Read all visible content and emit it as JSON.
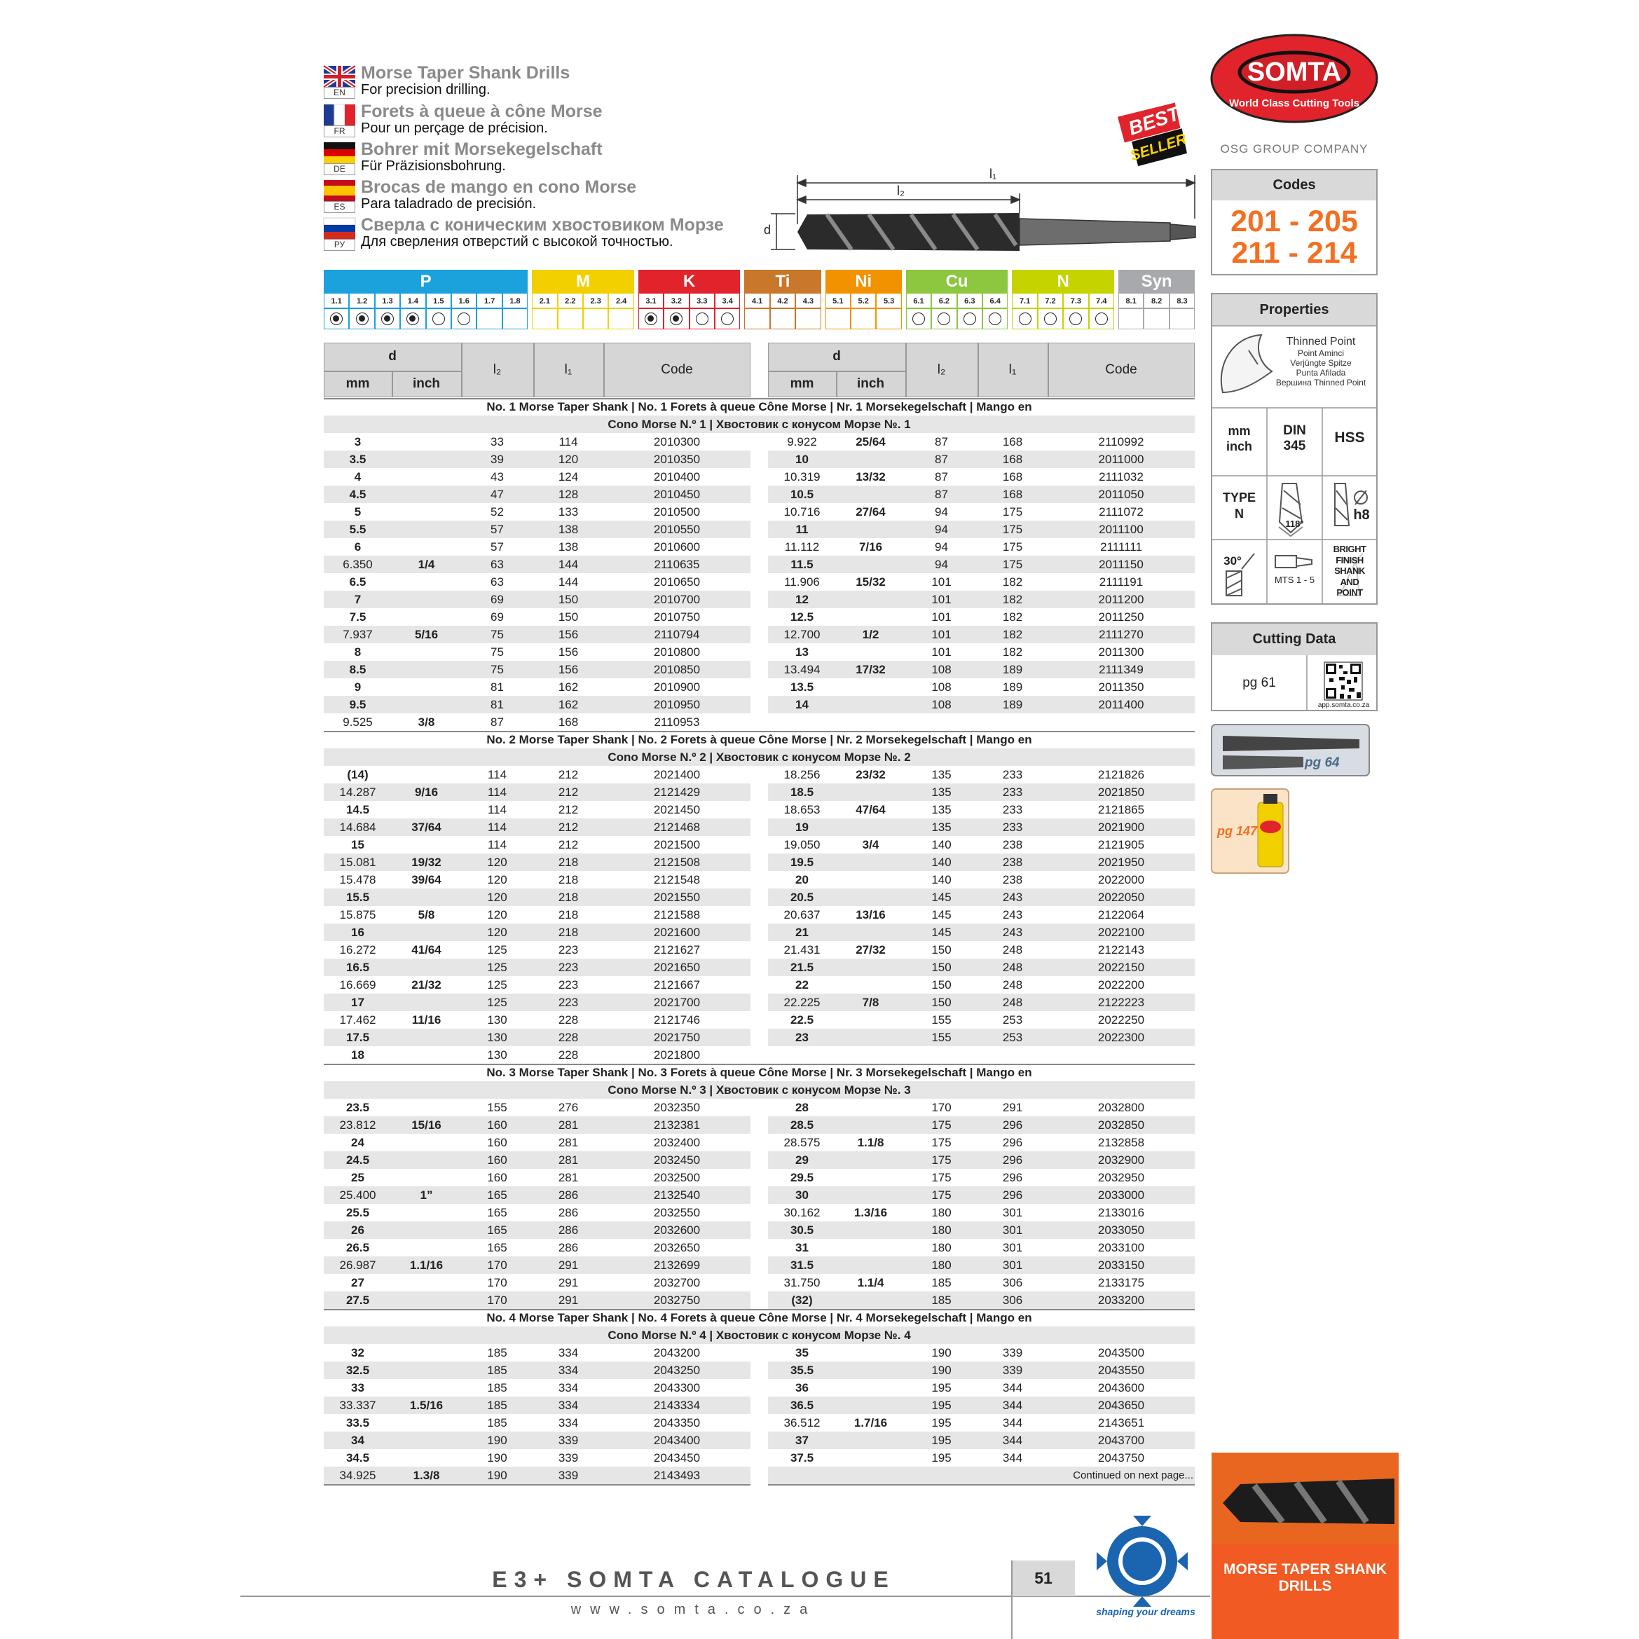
{
  "languages": [
    {
      "code": "EN",
      "title": "Morse Taper Shank Drills",
      "subtitle": "For precision drilling."
    },
    {
      "code": "FR",
      "title": "Forets à queue à cône Morse",
      "subtitle": "Pour un perçage de précision."
    },
    {
      "code": "DE",
      "title": "Bohrer mit Morsekegelschaft",
      "subtitle": "Für Präzisionsbohrung."
    },
    {
      "code": "ES",
      "title": "Brocas de mango en cono Morse",
      "subtitle": "Para taladrado de precisión."
    },
    {
      "code": "РУ",
      "title": "Сверла с коническим хвостовиком Морзе",
      "subtitle": "Для сверления отверстий с высокой точностью."
    }
  ],
  "badge": [
    "BEST",
    "SELLER"
  ],
  "drawing": {
    "l1": "l₁",
    "l2": "l₂",
    "d": "d"
  },
  "materials": [
    {
      "group": "P",
      "color": "#1ba1dc",
      "subgroups": [
        "1.1",
        "1.2",
        "1.3",
        "1.4",
        "1.5",
        "1.6",
        "1.7",
        "1.8"
      ],
      "suitability": [
        1,
        1,
        1,
        1,
        0,
        0,
        null,
        null
      ]
    },
    {
      "group": "M",
      "color": "#f2d000",
      "subgroups": [
        "2.1",
        "2.2",
        "2.3",
        "2.4"
      ],
      "suitability": [
        null,
        null,
        null,
        null
      ]
    },
    {
      "group": "K",
      "color": "#e1232b",
      "subgroups": [
        "3.1",
        "3.2",
        "3.3",
        "3.4"
      ],
      "suitability": [
        1,
        1,
        0,
        0
      ]
    },
    {
      "group": "Ti",
      "color": "#c9772b",
      "subgroups": [
        "4.1",
        "4.2",
        "4.3"
      ],
      "suitability": [
        null,
        null,
        null
      ]
    },
    {
      "group": "Ni",
      "color": "#f39200",
      "subgroups": [
        "5.1",
        "5.2",
        "5.3"
      ],
      "suitability": [
        null,
        null,
        null
      ]
    },
    {
      "group": "Cu",
      "color": "#8dc63f",
      "subgroups": [
        "6.1",
        "6.2",
        "6.3",
        "6.4"
      ],
      "suitability": [
        0,
        0,
        0,
        0
      ]
    },
    {
      "group": "N",
      "color": "#c5d300",
      "subgroups": [
        "7.1",
        "7.2",
        "7.3",
        "7.4"
      ],
      "suitability": [
        0,
        0,
        0,
        0
      ]
    },
    {
      "group": "Syn",
      "color": "#a7a9ac",
      "subgroups": [
        "8.1",
        "8.2",
        "8.3"
      ],
      "suitability": [
        null,
        null,
        null
      ]
    }
  ],
  "table": {
    "header": {
      "d": "d",
      "mm": "mm",
      "inch": "inch",
      "l2": "l₂",
      "l1": "l₁",
      "code": "Code"
    },
    "sections": [
      {
        "title": [
          "No. 1 Morse Taper Shank | No. 1 Forets à queue Cône Morse | Nr. 1 Morsekegelschaft | Mango en",
          "Cono Morse N.º 1 | Хвостовик с конусом Морзе №. 1"
        ],
        "left": [
          [
            "3",
            null,
            "33",
            "114",
            "2010300"
          ],
          [
            "3.5",
            null,
            "39",
            "120",
            "2010350"
          ],
          [
            "4",
            null,
            "43",
            "124",
            "2010400"
          ],
          [
            "4.5",
            null,
            "47",
            "128",
            "2010450"
          ],
          [
            "5",
            null,
            "52",
            "133",
            "2010500"
          ],
          [
            "5.5",
            null,
            "57",
            "138",
            "2010550"
          ],
          [
            "6",
            null,
            "57",
            "138",
            "2010600"
          ],
          [
            "6.350",
            "1/4",
            "63",
            "144",
            "2110635"
          ],
          [
            "6.5",
            null,
            "63",
            "144",
            "2010650"
          ],
          [
            "7",
            null,
            "69",
            "150",
            "2010700"
          ],
          [
            "7.5",
            null,
            "69",
            "150",
            "2010750"
          ],
          [
            "7.937",
            "5/16",
            "75",
            "156",
            "2110794"
          ],
          [
            "8",
            null,
            "75",
            "156",
            "2010800"
          ],
          [
            "8.5",
            null,
            "75",
            "156",
            "2010850"
          ],
          [
            "9",
            null,
            "81",
            "162",
            "2010900"
          ],
          [
            "9.5",
            null,
            "81",
            "162",
            "2010950"
          ],
          [
            "9.525",
            "3/8",
            "87",
            "168",
            "2110953"
          ]
        ],
        "right": [
          [
            "9.922",
            "25/64",
            "87",
            "168",
            "2110992"
          ],
          [
            "10",
            null,
            "87",
            "168",
            "2011000"
          ],
          [
            "10.319",
            "13/32",
            "87",
            "168",
            "2111032"
          ],
          [
            "10.5",
            null,
            "87",
            "168",
            "2011050"
          ],
          [
            "10.716",
            "27/64",
            "94",
            "175",
            "2111072"
          ],
          [
            "11",
            null,
            "94",
            "175",
            "2011100"
          ],
          [
            "11.112",
            "7/16",
            "94",
            "175",
            "2111111"
          ],
          [
            "11.5",
            null,
            "94",
            "175",
            "2011150"
          ],
          [
            "11.906",
            "15/32",
            "101",
            "182",
            "2111191"
          ],
          [
            "12",
            null,
            "101",
            "182",
            "2011200"
          ],
          [
            "12.5",
            null,
            "101",
            "182",
            "2011250"
          ],
          [
            "12.700",
            "1/2",
            "101",
            "182",
            "2111270"
          ],
          [
            "13",
            null,
            "101",
            "182",
            "2011300"
          ],
          [
            "13.494",
            "17/32",
            "108",
            "189",
            "2111349"
          ],
          [
            "13.5",
            null,
            "108",
            "189",
            "2011350"
          ],
          [
            "14",
            null,
            "108",
            "189",
            "2011400"
          ]
        ]
      },
      {
        "title": [
          "No. 2 Morse Taper Shank | No. 2 Forets à queue Cône Morse | Nr. 2 Morsekegelschaft | Mango en",
          "Cono Morse N.º 2 | Хвостовик с конусом Морзе №. 2"
        ],
        "left": [
          [
            "(14)",
            null,
            "114",
            "212",
            "2021400"
          ],
          [
            "14.287",
            "9/16",
            "114",
            "212",
            "2121429"
          ],
          [
            "14.5",
            null,
            "114",
            "212",
            "2021450"
          ],
          [
            "14.684",
            "37/64",
            "114",
            "212",
            "2121468"
          ],
          [
            "15",
            null,
            "114",
            "212",
            "2021500"
          ],
          [
            "15.081",
            "19/32",
            "120",
            "218",
            "2121508"
          ],
          [
            "15.478",
            "39/64",
            "120",
            "218",
            "2121548"
          ],
          [
            "15.5",
            null,
            "120",
            "218",
            "2021550"
          ],
          [
            "15.875",
            "5/8",
            "120",
            "218",
            "2121588"
          ],
          [
            "16",
            null,
            "120",
            "218",
            "2021600"
          ],
          [
            "16.272",
            "41/64",
            "125",
            "223",
            "2121627"
          ],
          [
            "16.5",
            null,
            "125",
            "223",
            "2021650"
          ],
          [
            "16.669",
            "21/32",
            "125",
            "223",
            "2121667"
          ],
          [
            "17",
            null,
            "125",
            "223",
            "2021700"
          ],
          [
            "17.462",
            "11/16",
            "130",
            "228",
            "2121746"
          ],
          [
            "17.5",
            null,
            "130",
            "228",
            "2021750"
          ],
          [
            "18",
            null,
            "130",
            "228",
            "2021800"
          ]
        ],
        "right": [
          [
            "18.256",
            "23/32",
            "135",
            "233",
            "2121826"
          ],
          [
            "18.5",
            null,
            "135",
            "233",
            "2021850"
          ],
          [
            "18.653",
            "47/64",
            "135",
            "233",
            "2121865"
          ],
          [
            "19",
            null,
            "135",
            "233",
            "2021900"
          ],
          [
            "19.050",
            "3/4",
            "140",
            "238",
            "2121905"
          ],
          [
            "19.5",
            null,
            "140",
            "238",
            "2021950"
          ],
          [
            "20",
            null,
            "140",
            "238",
            "2022000"
          ],
          [
            "20.5",
            null,
            "145",
            "243",
            "2022050"
          ],
          [
            "20.637",
            "13/16",
            "145",
            "243",
            "2122064"
          ],
          [
            "21",
            null,
            "145",
            "243",
            "2022100"
          ],
          [
            "21.431",
            "27/32",
            "150",
            "248",
            "2122143"
          ],
          [
            "21.5",
            null,
            "150",
            "248",
            "2022150"
          ],
          [
            "22",
            null,
            "150",
            "248",
            "2022200"
          ],
          [
            "22.225",
            "7/8",
            "150",
            "248",
            "2122223"
          ],
          [
            "22.5",
            null,
            "155",
            "253",
            "2022250"
          ],
          [
            "23",
            null,
            "155",
            "253",
            "2022300"
          ]
        ]
      },
      {
        "title": [
          "No. 3 Morse Taper Shank | No. 3 Forets à queue Cône Morse | Nr. 3 Morsekegelschaft | Mango en",
          "Cono Morse N.º 3 | Хвостовик с конусом Морзе №. 3"
        ],
        "left": [
          [
            "23.5",
            null,
            "155",
            "276",
            "2032350"
          ],
          [
            "23.812",
            "15/16",
            "160",
            "281",
            "2132381"
          ],
          [
            "24",
            null,
            "160",
            "281",
            "2032400"
          ],
          [
            "24.5",
            null,
            "160",
            "281",
            "2032450"
          ],
          [
            "25",
            null,
            "160",
            "281",
            "2032500"
          ],
          [
            "25.400",
            "1”",
            "165",
            "286",
            "2132540"
          ],
          [
            "25.5",
            null,
            "165",
            "286",
            "2032550"
          ],
          [
            "26",
            null,
            "165",
            "286",
            "2032600"
          ],
          [
            "26.5",
            null,
            "165",
            "286",
            "2032650"
          ],
          [
            "26.987",
            "1.1/16",
            "170",
            "291",
            "2132699"
          ],
          [
            "27",
            null,
            "170",
            "291",
            "2032700"
          ],
          [
            "27.5",
            null,
            "170",
            "291",
            "2032750"
          ]
        ],
        "right": [
          [
            "28",
            null,
            "170",
            "291",
            "2032800"
          ],
          [
            "28.5",
            null,
            "175",
            "296",
            "2032850"
          ],
          [
            "28.575",
            "1.1/8",
            "175",
            "296",
            "2132858"
          ],
          [
            "29",
            null,
            "175",
            "296",
            "2032900"
          ],
          [
            "29.5",
            null,
            "175",
            "296",
            "2032950"
          ],
          [
            "30",
            null,
            "175",
            "296",
            "2033000"
          ],
          [
            "30.162",
            "1.3/16",
            "180",
            "301",
            "2133016"
          ],
          [
            "30.5",
            null,
            "180",
            "301",
            "2033050"
          ],
          [
            "31",
            null,
            "180",
            "301",
            "2033100"
          ],
          [
            "31.5",
            null,
            "180",
            "301",
            "2033150"
          ],
          [
            "31.750",
            "1.1/4",
            "185",
            "306",
            "2133175"
          ],
          [
            "(32)",
            null,
            "185",
            "306",
            "2033200"
          ]
        ]
      },
      {
        "title": [
          "No. 4 Morse Taper Shank | No. 4 Forets à queue Cône Morse | Nr. 4 Morsekegelschaft | Mango en",
          "Cono Morse N.º 4 | Хвостовик с конусом Морзе №. 4"
        ],
        "left": [
          [
            "32",
            null,
            "185",
            "334",
            "2043200"
          ],
          [
            "32.5",
            null,
            "185",
            "334",
            "2043250"
          ],
          [
            "33",
            null,
            "185",
            "334",
            "2043300"
          ],
          [
            "33.337",
            "1.5/16",
            "185",
            "334",
            "2143334"
          ],
          [
            "33.5",
            null,
            "185",
            "334",
            "2043350"
          ],
          [
            "34",
            null,
            "190",
            "339",
            "2043400"
          ],
          [
            "34.5",
            null,
            "190",
            "339",
            "2043450"
          ],
          [
            "34.925",
            "1.3/8",
            "190",
            "339",
            "2143493"
          ]
        ],
        "right": [
          [
            "35",
            null,
            "190",
            "339",
            "2043500"
          ],
          [
            "35.5",
            null,
            "190",
            "339",
            "2043550"
          ],
          [
            "36",
            null,
            "195",
            "344",
            "2043600"
          ],
          [
            "36.5",
            null,
            "195",
            "344",
            "2043650"
          ],
          [
            "36.512",
            "1.7/16",
            "195",
            "344",
            "2143651"
          ],
          [
            "37",
            null,
            "195",
            "344",
            "2043700"
          ],
          [
            "37.5",
            null,
            "195",
            "344",
            "2043750"
          ]
        ]
      }
    ],
    "note": "Continued on next page..."
  },
  "sidebar": {
    "logo": {
      "name": "SOMTA",
      "tagline": "World Class Cutting Tools"
    },
    "group": "OSG GROUP COMPANY",
    "codes": {
      "header": "Codes",
      "lines": [
        "201 - 205",
        "211 - 214"
      ]
    },
    "properties": {
      "header": "Properties",
      "thinned": [
        "Thinned Point",
        "Point Aminci",
        "Verjüngte Spitze",
        "Punta Afilada",
        "Вершина Thinned Point"
      ],
      "units": [
        "mm",
        "inch"
      ],
      "din": [
        "DIN",
        "345"
      ],
      "material": "HSS",
      "type": [
        "TYPE",
        "N"
      ],
      "angle": "118°",
      "tolerance": "h8",
      "clearance": "30°",
      "shank": "MTS 1 - 5",
      "finish": [
        "BRIGHT",
        "FINISH",
        "SHANK",
        "AND",
        "POINT"
      ]
    },
    "cutting": {
      "header": "Cutting Data",
      "page": "pg 61",
      "url": "app.somta.co.za"
    },
    "sleeve": "pg 64",
    "fluid": "pg 147",
    "section_label": "MORSE TAPER SHANK DRILLS"
  },
  "footer": {
    "catalogue": "E3+ SOMTA CATALOGUE",
    "website": "www.somta.co.za",
    "page": "51",
    "slogan": "shaping your dreams"
  }
}
